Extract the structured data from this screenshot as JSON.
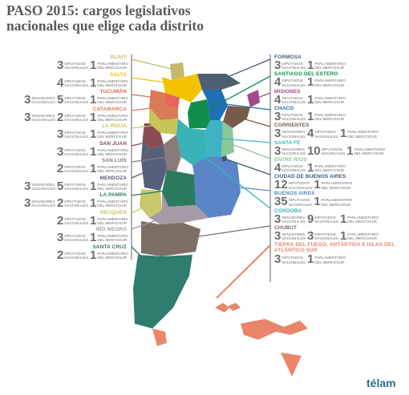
{
  "title": "PASO 2015: cargos legislativos nacionales que elige cada distrito",
  "logo": "télam",
  "labels": {
    "dip": "DIPUTADOS NACIONALES",
    "sen": "SENADORES NACIONALES",
    "par": "PARLAMENTARIO DEL MERCOSUR"
  },
  "left": [
    {
      "name": "JUJUY",
      "color": "#c5b86a",
      "sen": "",
      "dip": "3",
      "par": "1"
    },
    {
      "name": "SALTA",
      "color": "#f2c300",
      "sen": "",
      "dip": "4",
      "par": "1"
    },
    {
      "name": "TUCUMÁN",
      "color": "#e7665a",
      "sen": "3",
      "dip": "5",
      "par": "1"
    },
    {
      "name": "CATAMARCA",
      "color": "#d97a58",
      "sen": "3",
      "dip": "2",
      "par": "1"
    },
    {
      "name": "LA RIOJA",
      "color": "#c8c45a",
      "sen": "",
      "dip": "3",
      "par": "1"
    },
    {
      "name": "SAN JUAN",
      "color": "#8b4b52",
      "sen": "",
      "dip": "3",
      "par": "1"
    },
    {
      "name": "SAN LUIS",
      "color": "#8a7a7a",
      "sen": "",
      "dip": "2",
      "par": "1"
    },
    {
      "name": "MENDOZA",
      "color": "#57607a",
      "sen": "3",
      "dip": "5",
      "par": "1"
    },
    {
      "name": "LA PAMPA",
      "color": "#2d7b5f",
      "sen": "3",
      "dip": "2",
      "par": "1"
    },
    {
      "name": "NEUQUÉN",
      "color": "#c8c86c",
      "sen": "",
      "dip": "2",
      "par": "1"
    },
    {
      "name": "RÍO NEGRO",
      "color": "#a79aa6",
      "sen": "",
      "dip": "3",
      "par": "1"
    },
    {
      "name": "SANTA CRUZ",
      "color": "#2f7d6c",
      "sen": "",
      "dip": "2",
      "par": "1"
    }
  ],
  "right": [
    {
      "name": "FORMOSA",
      "color": "#4f5f72",
      "sen": "",
      "dip": "3",
      "par": "1"
    },
    {
      "name": "SANTIAGO DEL ESTERO",
      "color": "#0f8f4a",
      "sen": "",
      "dip": "4",
      "par": "1"
    },
    {
      "name": "MISIONES",
      "color": "#a14b8e",
      "sen": "",
      "dip": "4",
      "par": "1"
    },
    {
      "name": "CHACO",
      "color": "#1e6fb3",
      "sen": "",
      "dip": "3",
      "par": "1"
    },
    {
      "name": "CORRIENTES",
      "color": "#7a5a4a",
      "sen": "3",
      "dip": "4",
      "par": "1"
    },
    {
      "name": "SANTA FE",
      "color": "#3fb2c4",
      "sen": "3",
      "dip": "10",
      "par": "1"
    },
    {
      "name": "ENTRE RÍOS",
      "color": "#8ac79a",
      "sen": "",
      "dip": "4",
      "par": "1"
    },
    {
      "name": "CIUDAD DE BUENOS AIRES",
      "color": "#3d5a78",
      "sen": "",
      "dip": "12",
      "par": "1"
    },
    {
      "name": "BUENOS AIRES",
      "color": "#5a85c6",
      "sen": "",
      "dip": "35",
      "par": "1"
    },
    {
      "name": "CÓRDOBA",
      "color": "#38b3b8",
      "sen": "3",
      "dip": "9",
      "par": "1"
    },
    {
      "name": "CHUBUT",
      "color": "#7d6e65",
      "sen": "3",
      "dip": "3",
      "par": "1"
    },
    {
      "name": "TIERRA DEL FUEGO, ANTÁRTIDA E ISLAS DEL ATLÁNTICO SUR",
      "color": "#e8856a",
      "sen": "",
      "dip": "3",
      "par": "1"
    }
  ]
}
